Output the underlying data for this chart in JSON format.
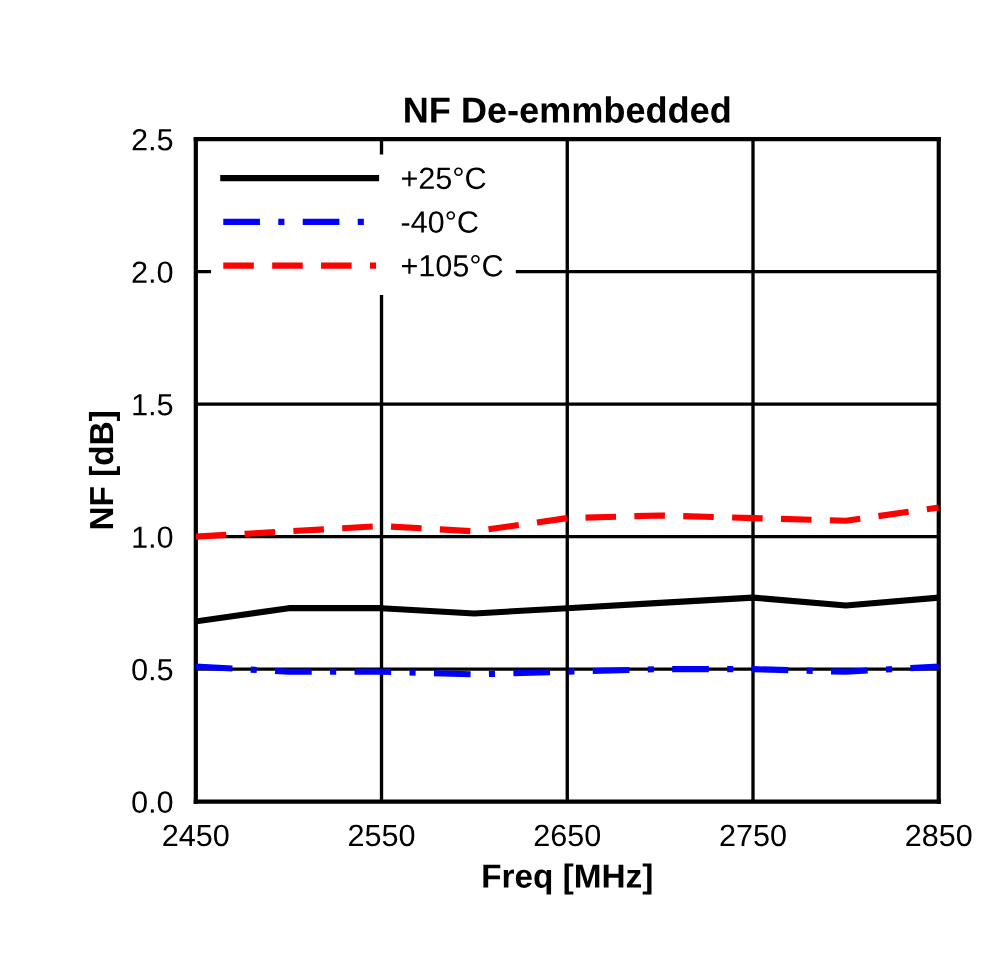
{
  "chart_data": {
    "type": "line",
    "title": "NF De-emmbedded",
    "xlabel": "Freq [MHz]",
    "ylabel": "NF [dB]",
    "x": [
      2450,
      2500,
      2550,
      2600,
      2650,
      2700,
      2750,
      2800,
      2850
    ],
    "series": [
      {
        "name": "+25°C",
        "color": "#000000",
        "line_style": "solid",
        "values": [
          0.68,
          0.73,
          0.73,
          0.71,
          0.73,
          0.75,
          0.77,
          0.74,
          0.77
        ]
      },
      {
        "name": "-40°C",
        "color": "#0000ff",
        "line_style": "dashdot",
        "values": [
          0.51,
          0.49,
          0.49,
          0.48,
          0.49,
          0.5,
          0.5,
          0.49,
          0.51
        ]
      },
      {
        "name": "+105°C",
        "color": "#ff0000",
        "line_style": "dashed",
        "values": [
          1.0,
          1.02,
          1.04,
          1.02,
          1.07,
          1.08,
          1.07,
          1.06,
          1.11
        ]
      }
    ],
    "xlim": [
      2450,
      2850
    ],
    "xticks": [
      2450,
      2550,
      2650,
      2750,
      2850
    ],
    "ylim": [
      0,
      2.5
    ],
    "yticks": [
      {
        "value": 0,
        "label": "0.0"
      },
      0.5,
      {
        "value": 1,
        "label": "1.0"
      },
      1.5,
      {
        "value": 2,
        "label": "2.0"
      },
      2.5
    ],
    "grid": true,
    "legend": "top left",
    "marker": "none"
  }
}
